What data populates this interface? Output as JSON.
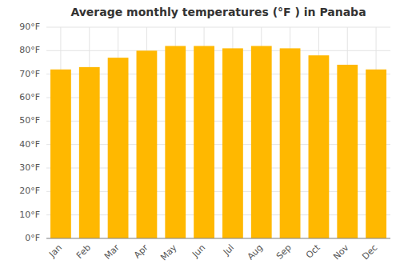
{
  "chart_data": {
    "type": "bar",
    "title": "Average monthly temperatures (°F ) in Panaba",
    "categories": [
      "Jan",
      "Feb",
      "Mar",
      "Apr",
      "May",
      "Jun",
      "Jul",
      "Aug",
      "Sep",
      "Oct",
      "Nov",
      "Dec"
    ],
    "values": [
      72,
      73,
      77,
      80,
      82,
      82,
      81,
      82,
      81,
      78,
      74,
      72
    ],
    "color": "#FFB800",
    "ylim": [
      0,
      90
    ],
    "yticks": [
      {
        "value": 0,
        "label": "0°F"
      },
      {
        "value": 10,
        "label": "10°F"
      },
      {
        "value": 20,
        "label": "20°F"
      },
      {
        "value": 30,
        "label": "30°F"
      },
      {
        "value": 40,
        "label": "40°F"
      },
      {
        "value": 50,
        "label": "50°F"
      },
      {
        "value": 60,
        "label": "60°F"
      },
      {
        "value": 70,
        "label": "70°F"
      },
      {
        "value": 80,
        "label": "80°F"
      },
      {
        "value": 90,
        "label": "90°F"
      }
    ],
    "grid": true
  }
}
